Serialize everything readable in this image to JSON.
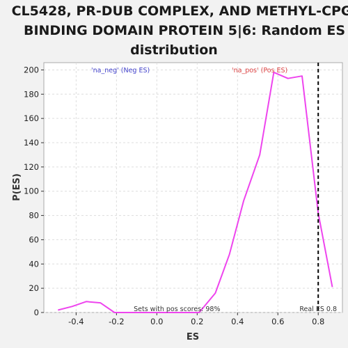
{
  "chart_data": {
    "type": "line",
    "title_lines": [
      "CL5428, PR-DUB COMPLEX, AND METHYL-CPG-",
      "BINDING DOMAIN PROTEIN 5|6: Random ES",
      "distribution"
    ],
    "xlabel": "ES",
    "ylabel": "P(ES)",
    "xlim": [
      -0.56,
      0.92
    ],
    "ylim": [
      0,
      206
    ],
    "x_ticks": [
      -0.4,
      -0.2,
      0.0,
      0.2,
      0.4,
      0.6,
      0.8
    ],
    "x_tick_labels": [
      "-0.4",
      "-0.2",
      "0.0",
      "0.2",
      "0.4",
      "0.6",
      "0.8"
    ],
    "y_ticks": [
      0,
      20,
      40,
      60,
      80,
      100,
      120,
      140,
      160,
      180,
      200
    ],
    "y_tick_labels": [
      "0",
      "20",
      "40",
      "60",
      "80",
      "100",
      "120",
      "140",
      "160",
      "180",
      "200"
    ],
    "grid": true,
    "series": [
      {
        "color": "#ee44ee",
        "x": [
          -0.49,
          -0.42,
          -0.35,
          -0.28,
          -0.21,
          -0.14,
          -0.07,
          0.0,
          0.07,
          0.14,
          0.21,
          0.29,
          0.36,
          0.43,
          0.51,
          0.58,
          0.65,
          0.72,
          0.8,
          0.87
        ],
        "y": [
          2,
          5,
          9,
          8,
          0,
          0,
          0,
          0,
          0,
          0,
          0,
          16,
          48,
          92,
          130,
          198,
          193,
          195,
          82,
          21
        ]
      }
    ],
    "real_es": 0.8,
    "annotations": {
      "neg_label": "'na_neg' (Neg ES)",
      "pos_label": "'na_pos' (Pos ES)",
      "sets_text": "Sets with pos scores: 98%",
      "real_es_text": "Real ES 0.8"
    },
    "colors": {
      "neg": "#4444cc",
      "pos": "#dd4444",
      "real_es_line": "#000000",
      "grid": "#dddddd"
    }
  }
}
